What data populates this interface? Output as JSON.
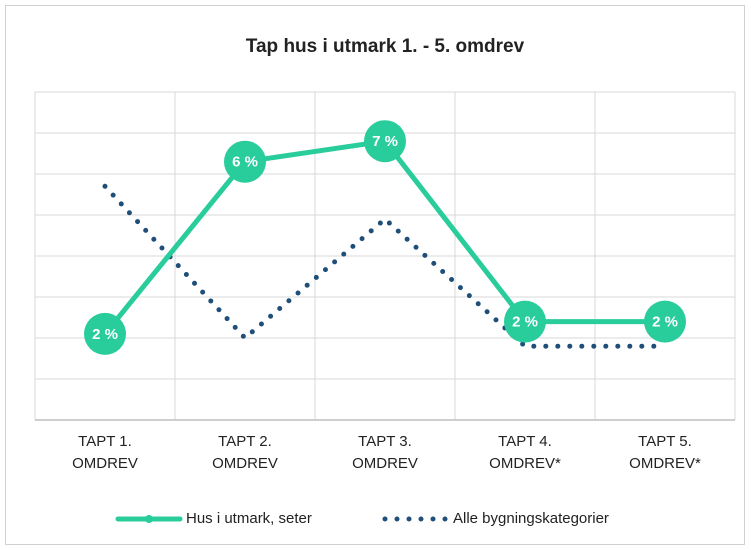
{
  "chart_data": {
    "type": "line",
    "title": "Tap hus i utmark 1. - 5. omdrev",
    "categories": [
      "TAPT 1. OMDREV",
      "TAPT 2. OMDREV",
      "TAPT 3. OMDREV",
      "TAPT 4. OMDREV*",
      "TAPT 5. OMDREV*"
    ],
    "series": [
      {
        "name": "Hus i utmark, seter",
        "color": "#29cc9b",
        "style": "solid",
        "values": [
          2.1,
          6.3,
          6.8,
          2.4,
          2.4
        ],
        "value_labels": [
          "2 %",
          "6 %",
          "7 %",
          "2 %",
          "2 %"
        ]
      },
      {
        "name": "Alle bygningskategorier",
        "color": "#1f4e79",
        "style": "dotted",
        "values": [
          5.7,
          2.0,
          4.9,
          1.8,
          1.8
        ]
      }
    ],
    "ylim": [
      0,
      8
    ],
    "yticks": [
      0,
      1,
      2,
      3,
      4,
      5,
      6,
      7,
      8
    ],
    "grid": true,
    "legend": "bottom"
  }
}
